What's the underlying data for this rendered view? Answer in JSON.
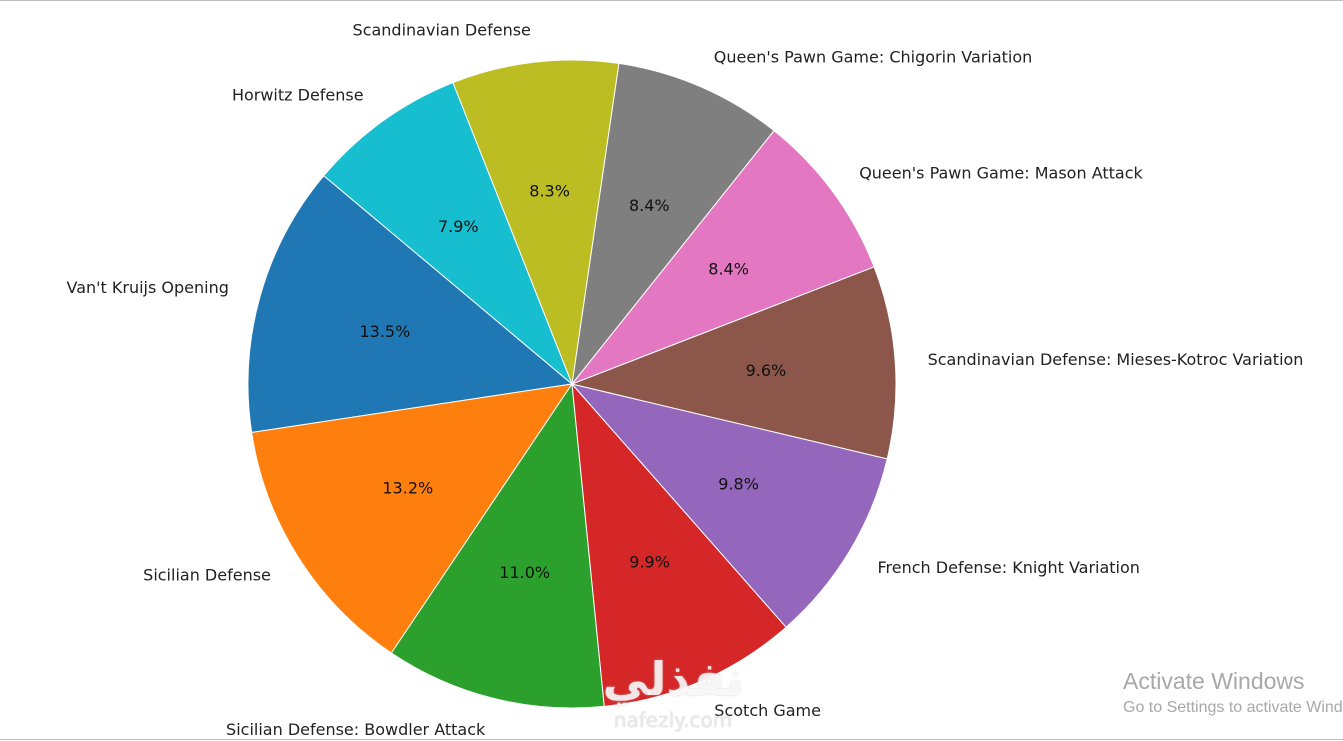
{
  "chart_data": {
    "type": "pie",
    "title": "",
    "categories": [
      "Van't Kruijs Opening",
      "Sicilian Defense",
      "Sicilian Defense: Bowdler Attack",
      "Scotch Game",
      "French Defense: Knight Variation",
      "Scandinavian Defense: Mieses-Kotroc Variation",
      "Queen's Pawn Game: Mason Attack",
      "Queen's Pawn Game: Chigorin Variation",
      "Scandinavian Defense",
      "Horwitz Defense"
    ],
    "values": [
      13.5,
      13.2,
      11.0,
      9.9,
      9.8,
      9.6,
      8.4,
      8.4,
      8.3,
      7.9
    ],
    "percent_labels": [
      "13.5%",
      "13.2%",
      "11.0%",
      "9.9%",
      "9.8%",
      "9.6%",
      "8.4%",
      "8.4%",
      "8.3%",
      "7.9%"
    ],
    "colors": [
      "#1f77b4",
      "#ff7f0e",
      "#2ca02c",
      "#d62728",
      "#9467bd",
      "#8c564b",
      "#e377c2",
      "#7f7f7f",
      "#bcbd22",
      "#17becf"
    ],
    "start_angle_deg": 140,
    "direction": "counterclockwise"
  },
  "watermark": {
    "arabic": "نفذلي",
    "latin": "nafezly.com"
  },
  "activation": {
    "title": "Activate Windows",
    "subtitle": "Go to Settings to activate Windows."
  }
}
